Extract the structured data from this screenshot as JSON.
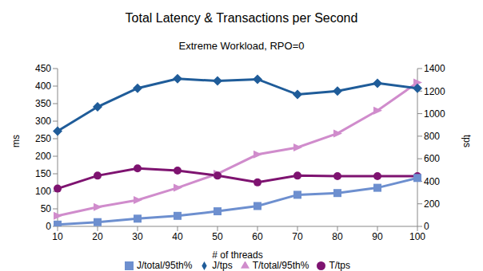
{
  "chart_data": {
    "type": "line",
    "title": "Total Latency & Transactions per Second",
    "subtitle": "Extreme Workload, RPO=0",
    "x_label": "# of threads",
    "y_label": "ms",
    "y2_label": "tps",
    "categories": [
      10,
      20,
      30,
      40,
      50,
      60,
      70,
      80,
      90,
      100
    ],
    "ylim": [
      0,
      450
    ],
    "yticks": [
      0,
      50,
      100,
      150,
      200,
      250,
      300,
      350,
      400,
      450
    ],
    "y2lim": [
      0,
      1400
    ],
    "y2ticks": [
      0,
      200,
      400,
      600,
      800,
      1000,
      1200,
      1400
    ],
    "grid": false,
    "legend": "bottom",
    "series": [
      {
        "name": "T/total/95th%",
        "color": "#d08ccc",
        "marker": "triangle",
        "values": [
          30,
          55,
          75,
          110,
          150,
          205,
          225,
          265,
          330,
          410
        ]
      },
      {
        "name": "T/tps",
        "color": "#7e1370",
        "marker": "circle",
        "axis": "y2",
        "values": [
          335,
          450,
          515,
          495,
          450,
          390,
          450,
          445,
          445,
          445
        ]
      },
      {
        "name": "J/total/95th%",
        "color": "#6d8fcf",
        "marker": "square",
        "values": [
          5,
          12,
          22,
          30,
          43,
          58,
          90,
          95,
          110,
          138
        ]
      },
      {
        "name": "J/tps",
        "color": "#1f5c99",
        "marker": "diamond",
        "axis": "y2",
        "values": [
          845,
          1060,
          1225,
          1310,
          1290,
          1305,
          1170,
          1200,
          1270,
          1225
        ]
      }
    ]
  }
}
